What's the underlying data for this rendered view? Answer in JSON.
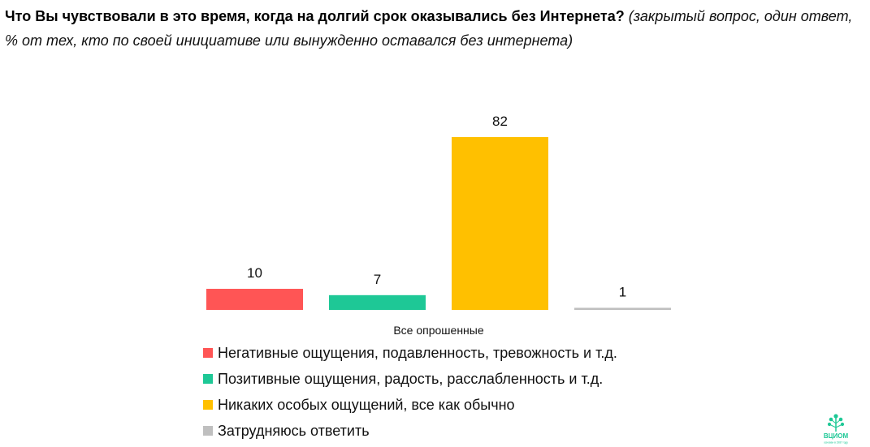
{
  "question": {
    "bold": "Что Вы чувствовали в это время, когда на долгий срок оказывались без Интернета?",
    "note": "(закрытый вопрос, один ответ, % от тех, кто по своей инициативе или вынужденно оставался без интернета)"
  },
  "chart_data": {
    "type": "bar",
    "categories": [
      "Все опрошенные"
    ],
    "series": [
      {
        "name": "Негативные ощущения, подавленность, тревожность и т.д.",
        "values": [
          10
        ],
        "color": "#ff5555"
      },
      {
        "name": "Позитивные ощущения, радость, расслабленность и т.д.",
        "values": [
          7
        ],
        "color": "#1ec896"
      },
      {
        "name": "Никаких особых ощущений, все как обычно",
        "values": [
          82
        ],
        "color": "#ffc000"
      },
      {
        "name": "Затрудняюсь ответить",
        "values": [
          1
        ],
        "color": "#bfbfbf"
      }
    ],
    "ylim": [
      0,
      82
    ],
    "grid": false,
    "legend": "bottom"
  },
  "logo": {
    "text": "ВЦИОМ",
    "tagline": "основан в 1987 году"
  }
}
